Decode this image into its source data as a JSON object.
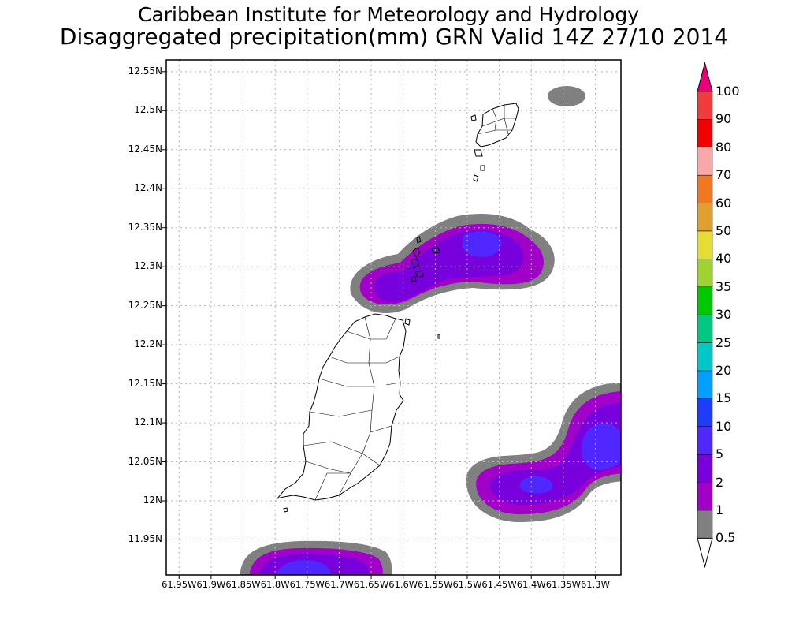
{
  "title": "Caribbean Institute for Meteorology and Hydrology",
  "subtitle": "Disaggregated precipitation(mm) GRN Valid 14Z 27/10 2014",
  "map": {
    "lon_min": -61.97,
    "lon_max": -61.26,
    "lat_min": 11.905,
    "lat_max": 12.565,
    "lat_ticks": [
      {
        "value": 12.55,
        "label": "12.55N"
      },
      {
        "value": 12.5,
        "label": "12.5N"
      },
      {
        "value": 12.45,
        "label": "12.45N"
      },
      {
        "value": 12.4,
        "label": "12.4N"
      },
      {
        "value": 12.35,
        "label": "12.35N"
      },
      {
        "value": 12.3,
        "label": "12.3N"
      },
      {
        "value": 12.25,
        "label": "12.25N"
      },
      {
        "value": 12.2,
        "label": "12.2N"
      },
      {
        "value": 12.15,
        "label": "12.15N"
      },
      {
        "value": 12.1,
        "label": "12.1N"
      },
      {
        "value": 12.05,
        "label": "12.05N"
      },
      {
        "value": 12.0,
        "label": "12N"
      },
      {
        "value": 11.95,
        "label": "11.95N"
      }
    ],
    "lon_ticks": [
      {
        "value": -61.95,
        "label": "61.95W"
      },
      {
        "value": -61.9,
        "label": "61.9W"
      },
      {
        "value": -61.85,
        "label": "61.85W"
      },
      {
        "value": -61.8,
        "label": "61.8W"
      },
      {
        "value": -61.75,
        "label": "61.75W"
      },
      {
        "value": -61.7,
        "label": "61.7W"
      },
      {
        "value": -61.65,
        "label": "61.65W"
      },
      {
        "value": -61.6,
        "label": "61.6W"
      },
      {
        "value": -61.55,
        "label": "61.55W"
      },
      {
        "value": -61.5,
        "label": "61.5W"
      },
      {
        "value": -61.45,
        "label": "61.45W"
      },
      {
        "value": -61.4,
        "label": "61.4W"
      },
      {
        "value": -61.35,
        "label": "61.35W"
      },
      {
        "value": -61.3,
        "label": "61.3W"
      }
    ],
    "grid": true
  },
  "legend": {
    "levels": [
      {
        "label": "100",
        "color": "#e8007a"
      },
      {
        "label": "90",
        "color": "#f03c3c"
      },
      {
        "label": "80",
        "color": "#f00000"
      },
      {
        "label": "70",
        "color": "#f8a8a8"
      },
      {
        "label": "60",
        "color": "#f07820"
      },
      {
        "label": "50",
        "color": "#e0a030"
      },
      {
        "label": "40",
        "color": "#e6dc32"
      },
      {
        "label": "35",
        "color": "#a0d232"
      },
      {
        "label": "30",
        "color": "#00c800"
      },
      {
        "label": "25",
        "color": "#00c882"
      },
      {
        "label": "20",
        "color": "#00c8c8"
      },
      {
        "label": "15",
        "color": "#00a0ff"
      },
      {
        "label": "10",
        "color": "#1e3cff"
      },
      {
        "label": "5",
        "color": "#5028ff"
      },
      {
        "label": "2",
        "color": "#7800dc"
      },
      {
        "label": "1",
        "color": "#a000c8"
      },
      {
        "label": "0.5",
        "color": "#808080"
      }
    ]
  },
  "chart_data": {
    "type": "heatmap",
    "units": "mm",
    "precip_areas": [
      {
        "region": "north-central",
        "lon": [
          -61.66,
          -61.41
        ],
        "lat": [
          12.24,
          12.36
        ],
        "max_level": "5"
      },
      {
        "region": "east-central",
        "lon": [
          -61.48,
          -61.26
        ],
        "lat": [
          11.99,
          12.14
        ],
        "max_level": "5"
      },
      {
        "region": "south",
        "lon": [
          -61.84,
          -61.61
        ],
        "lat": [
          11.905,
          11.95
        ],
        "max_level": "5"
      },
      {
        "region": "northeast",
        "lon": [
          -61.37,
          -61.32
        ],
        "lat": [
          12.49,
          12.52
        ],
        "max_level": "0.5"
      }
    ]
  }
}
